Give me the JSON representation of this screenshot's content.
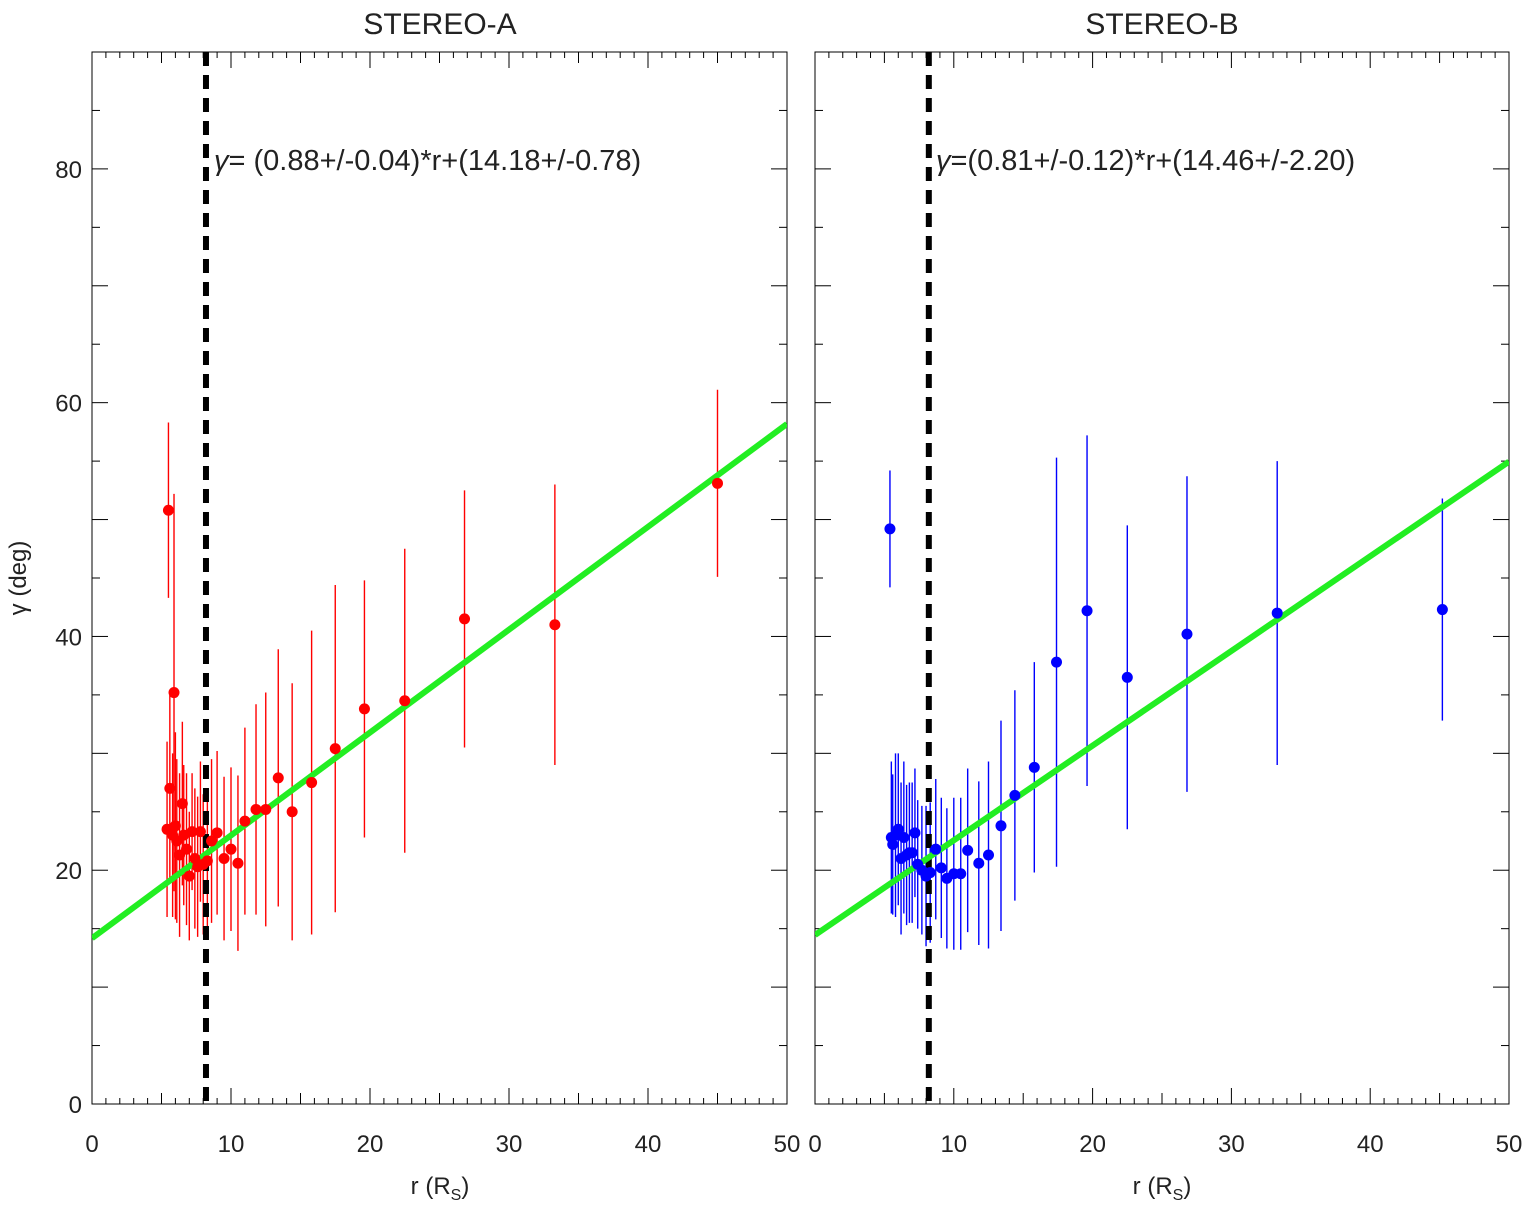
{
  "figure": {
    "ylabel": "γ (deg)",
    "xlabel_main": "r (R",
    "xlabel_sub": "S",
    "xlabel_close": ")"
  },
  "chart_data": [
    {
      "type": "scatter",
      "title": "STEREO-A",
      "xlabel": "r (R_S)",
      "ylabel": "γ (deg)",
      "xlim": [
        0,
        50
      ],
      "ylim": [
        0,
        90
      ],
      "xticks": [
        0,
        10,
        20,
        30,
        40,
        50
      ],
      "yticks": [
        0,
        20,
        40,
        60,
        80
      ],
      "grid": false,
      "point_color": "#ff0000",
      "fit_color": "#22ee22",
      "equation": {
        "symbol": "γ",
        "text": "= (0.88+/-0.04)*r+(14.18+/-0.78)"
      },
      "fit": {
        "slope": 0.88,
        "intercept": 14.18
      },
      "reference_line_x": 8.2,
      "points": [
        {
          "x": 5.4,
          "y": 23.5,
          "err": 7.5
        },
        {
          "x": 5.5,
          "y": 50.8,
          "err": 7.5
        },
        {
          "x": 5.6,
          "y": 27.0,
          "err": 8.0
        },
        {
          "x": 5.8,
          "y": 23.0,
          "err": 7.0
        },
        {
          "x": 5.9,
          "y": 35.2,
          "err": 17.0
        },
        {
          "x": 6.0,
          "y": 23.8,
          "err": 8.0
        },
        {
          "x": 6.1,
          "y": 22.5,
          "err": 7.0
        },
        {
          "x": 6.3,
          "y": 21.3,
          "err": 7.0
        },
        {
          "x": 6.5,
          "y": 25.7,
          "err": 7.0
        },
        {
          "x": 6.6,
          "y": 23.0,
          "err": 6.0
        },
        {
          "x": 6.8,
          "y": 21.8,
          "err": 6.5
        },
        {
          "x": 7.0,
          "y": 19.5,
          "err": 5.5
        },
        {
          "x": 7.2,
          "y": 23.3,
          "err": 5.0
        },
        {
          "x": 7.4,
          "y": 21.0,
          "err": 6.0
        },
        {
          "x": 7.6,
          "y": 20.3,
          "err": 6.0
        },
        {
          "x": 7.8,
          "y": 23.3,
          "err": 6.0
        },
        {
          "x": 8.0,
          "y": 20.5,
          "err": 6.0
        },
        {
          "x": 8.3,
          "y": 20.8,
          "err": 6.0
        },
        {
          "x": 8.6,
          "y": 22.5,
          "err": 7.0
        },
        {
          "x": 9.0,
          "y": 23.2,
          "err": 7.0
        },
        {
          "x": 9.5,
          "y": 21.0,
          "err": 7.0
        },
        {
          "x": 10.0,
          "y": 21.8,
          "err": 7.0
        },
        {
          "x": 10.5,
          "y": 20.6,
          "err": 7.5
        },
        {
          "x": 11.0,
          "y": 24.2,
          "err": 8.0
        },
        {
          "x": 11.8,
          "y": 25.2,
          "err": 9.0
        },
        {
          "x": 12.5,
          "y": 25.2,
          "err": 10.0
        },
        {
          "x": 13.4,
          "y": 27.9,
          "err": 11.0
        },
        {
          "x": 14.4,
          "y": 25.0,
          "err": 11.0
        },
        {
          "x": 15.8,
          "y": 27.5,
          "err": 13.0
        },
        {
          "x": 17.5,
          "y": 30.4,
          "err": 14.0
        },
        {
          "x": 19.6,
          "y": 33.8,
          "err": 11.0
        },
        {
          "x": 22.5,
          "y": 34.5,
          "err": 13.0
        },
        {
          "x": 26.8,
          "y": 41.5,
          "err": 11.0
        },
        {
          "x": 33.3,
          "y": 41.0,
          "err": 12.0
        },
        {
          "x": 45.0,
          "y": 53.1,
          "err": 8.0
        }
      ]
    },
    {
      "type": "scatter",
      "title": "STEREO-B",
      "xlabel": "r (R_S)",
      "ylabel": "γ (deg)",
      "xlim": [
        0,
        50
      ],
      "ylim": [
        0,
        90
      ],
      "xticks": [
        0,
        10,
        20,
        30,
        40,
        50
      ],
      "grid": false,
      "point_color": "#0000ff",
      "fit_color": "#22ee22",
      "equation": {
        "symbol": "γ",
        "text": "=(0.81+/-0.12)*r+(14.46+/-2.20)"
      },
      "fit": {
        "slope": 0.81,
        "intercept": 14.46
      },
      "reference_line_x": 8.2,
      "points": [
        {
          "x": 5.4,
          "y": 49.2,
          "err": 5.0
        },
        {
          "x": 5.5,
          "y": 22.8,
          "err": 6.5
        },
        {
          "x": 5.6,
          "y": 22.2,
          "err": 6.0
        },
        {
          "x": 5.8,
          "y": 23.0,
          "err": 7.0
        },
        {
          "x": 6.0,
          "y": 23.5,
          "err": 6.5
        },
        {
          "x": 6.2,
          "y": 21.0,
          "err": 6.5
        },
        {
          "x": 6.4,
          "y": 22.8,
          "err": 6.5
        },
        {
          "x": 6.6,
          "y": 21.3,
          "err": 6.0
        },
        {
          "x": 6.8,
          "y": 21.5,
          "err": 6.0
        },
        {
          "x": 7.0,
          "y": 21.5,
          "err": 6.0
        },
        {
          "x": 7.2,
          "y": 23.2,
          "err": 5.5
        },
        {
          "x": 7.4,
          "y": 20.5,
          "err": 5.5
        },
        {
          "x": 7.7,
          "y": 20.0,
          "err": 5.5
        },
        {
          "x": 8.0,
          "y": 19.5,
          "err": 6.0
        },
        {
          "x": 8.3,
          "y": 19.8,
          "err": 6.0
        },
        {
          "x": 8.7,
          "y": 21.8,
          "err": 6.0
        },
        {
          "x": 9.1,
          "y": 20.2,
          "err": 6.0
        },
        {
          "x": 9.5,
          "y": 19.3,
          "err": 6.0
        },
        {
          "x": 10.0,
          "y": 19.7,
          "err": 6.5
        },
        {
          "x": 10.5,
          "y": 19.7,
          "err": 6.5
        },
        {
          "x": 11.0,
          "y": 21.7,
          "err": 7.0
        },
        {
          "x": 11.8,
          "y": 20.6,
          "err": 7.0
        },
        {
          "x": 12.5,
          "y": 21.3,
          "err": 8.0
        },
        {
          "x": 13.4,
          "y": 23.8,
          "err": 9.0
        },
        {
          "x": 14.4,
          "y": 26.4,
          "err": 9.0
        },
        {
          "x": 15.8,
          "y": 28.8,
          "err": 9.0
        },
        {
          "x": 17.4,
          "y": 37.8,
          "err": 17.5
        },
        {
          "x": 19.6,
          "y": 42.2,
          "err": 15.0
        },
        {
          "x": 22.5,
          "y": 36.5,
          "err": 13.0
        },
        {
          "x": 26.8,
          "y": 40.2,
          "err": 13.5
        },
        {
          "x": 33.3,
          "y": 42.0,
          "err": 13.0
        },
        {
          "x": 45.2,
          "y": 42.3,
          "err": 9.5
        }
      ]
    }
  ]
}
